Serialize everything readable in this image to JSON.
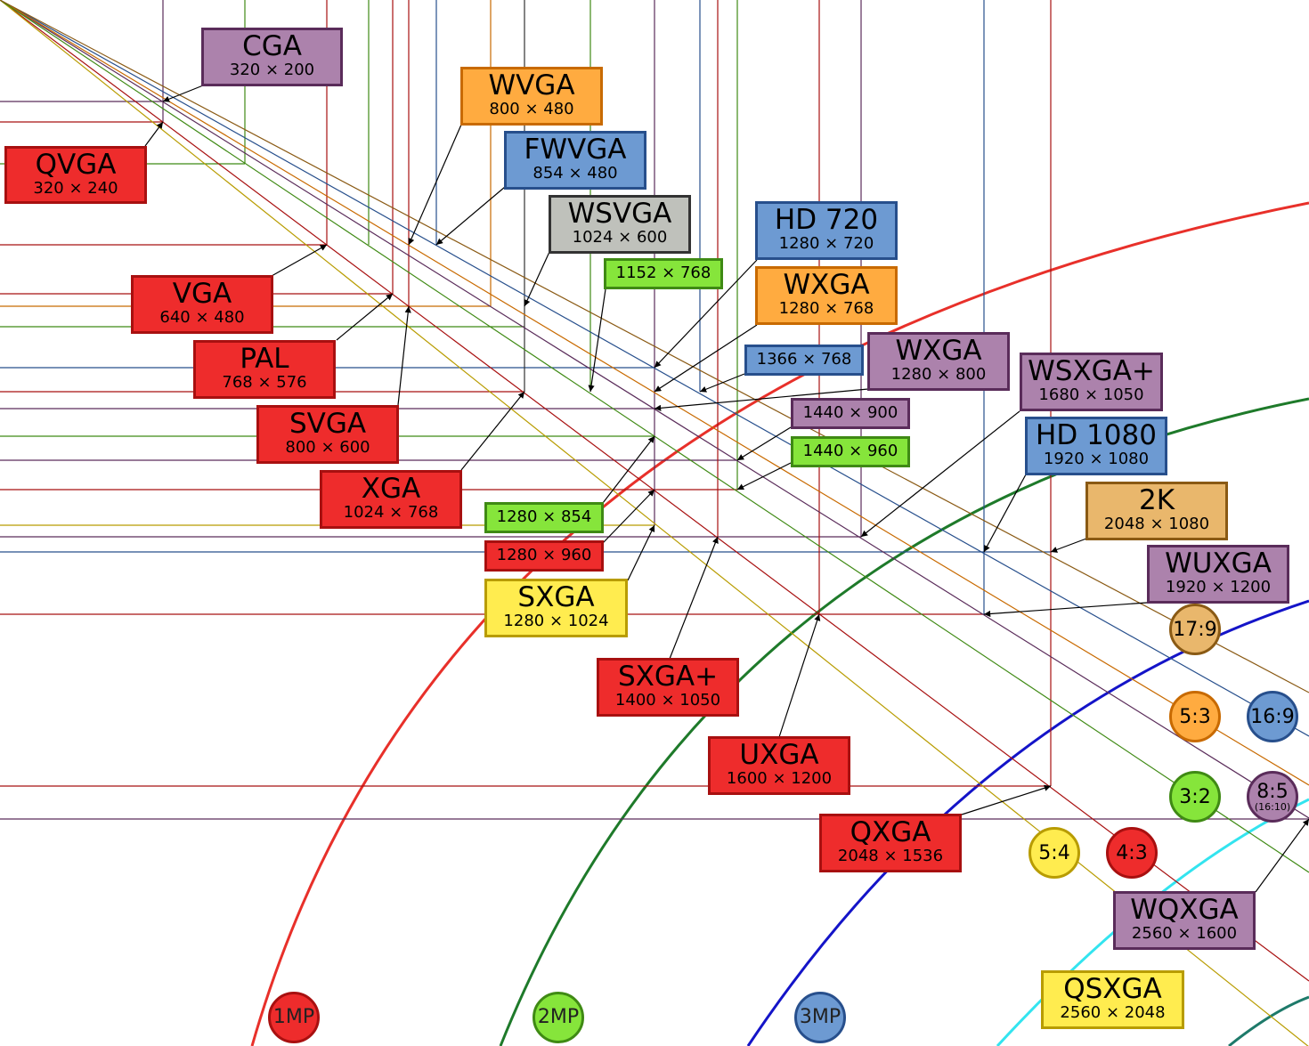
{
  "resolutions": [
    {
      "name": "CGA",
      "dims": "320 × 200",
      "color": "#ac82ac"
    },
    {
      "name": "QVGA",
      "dims": "320 × 240",
      "color": "#ee2c2c"
    },
    {
      "name": "WVGA",
      "dims": "800 × 480",
      "color": "#ffab40"
    },
    {
      "name": "FWVGA",
      "dims": "854 × 480",
      "color": "#6d9ad2"
    },
    {
      "name": "WSVGA",
      "dims": "1024 × 600",
      "color": "#bfc1bb"
    },
    {
      "name": "VGA",
      "dims": "640 × 480",
      "color": "#ee2c2c"
    },
    {
      "name": "PAL",
      "dims": "768 × 576",
      "color": "#ee2c2c"
    },
    {
      "name": "SVGA",
      "dims": "800 × 600",
      "color": "#ee2c2c"
    },
    {
      "name": "XGA",
      "dims": "1024 × 768",
      "color": "#ee2c2c"
    },
    {
      "name": "HD 720",
      "dims": "1280 × 720",
      "color": "#6d9ad2"
    },
    {
      "name": "WXGA",
      "dims": "1280 × 768",
      "color": "#ffab40"
    },
    {
      "name": "WXGA",
      "dims": "1280 × 800",
      "color": "#ac82ac"
    },
    {
      "name": "WSXGA+",
      "dims": "1680 × 1050",
      "color": "#ac82ac"
    },
    {
      "name": "HD 1080",
      "dims": "1920 × 1080",
      "color": "#6d9ad2"
    },
    {
      "name": "2K",
      "dims": "2048 × 1080",
      "color": "#e9b76c"
    },
    {
      "name": "WUXGA",
      "dims": "1920 × 1200",
      "color": "#ac82ac"
    },
    {
      "name": "SXGA",
      "dims": "1280 × 1024",
      "color": "#ffec4f"
    },
    {
      "name": "SXGA+",
      "dims": "1400 × 1050",
      "color": "#ee2c2c"
    },
    {
      "name": "UXGA",
      "dims": "1600 × 1200",
      "color": "#ee2c2c"
    },
    {
      "name": "QXGA",
      "dims": "2048 × 1536",
      "color": "#ee2c2c"
    },
    {
      "name": "WQXGA",
      "dims": "2560 × 1600",
      "color": "#ac82ac"
    },
    {
      "name": "QSXGA",
      "dims": "2560 × 2048",
      "color": "#ffec4f"
    }
  ],
  "unnamed_resolutions": [
    {
      "dims": "1152 × 768",
      "color": "#86e53b"
    },
    {
      "dims": "1366 × 768",
      "color": "#6d9ad2"
    },
    {
      "dims": "1440 × 900",
      "color": "#ac82ac"
    },
    {
      "dims": "1440 × 960",
      "color": "#86e53b"
    },
    {
      "dims": "1280 × 854",
      "color": "#86e53b"
    },
    {
      "dims": "1280 × 960",
      "color": "#ee2c2c"
    }
  ],
  "aspect_ratios": [
    {
      "label": "17:9",
      "sub": "",
      "color": "#e9b76c"
    },
    {
      "label": "5:3",
      "sub": "",
      "color": "#ffab40"
    },
    {
      "label": "16:9",
      "sub": "",
      "color": "#6d9ad2"
    },
    {
      "label": "3:2",
      "sub": "",
      "color": "#86e53b"
    },
    {
      "label": "8:5",
      "sub": "(16:10)",
      "color": "#ac82ac"
    },
    {
      "label": "5:4",
      "sub": "",
      "color": "#ffec4f"
    },
    {
      "label": "4:3",
      "sub": "",
      "color": "#ee2c2c"
    }
  ],
  "megapixels": [
    {
      "label": "1MP",
      "color": "#ee2c2c"
    },
    {
      "label": "2MP",
      "color": "#86e53b"
    },
    {
      "label": "3MP",
      "color": "#6d9ad2"
    }
  ]
}
